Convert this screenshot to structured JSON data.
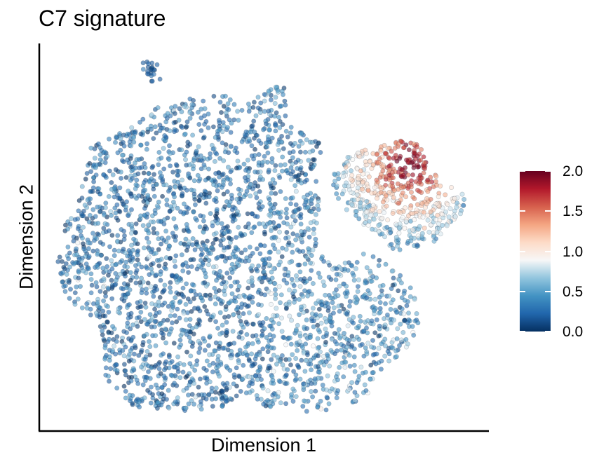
{
  "chart_data": {
    "type": "scatter",
    "title": "C7 signature",
    "xlabel": "Dimension 1",
    "ylabel": "Dimension 2",
    "x_ticks_shown": false,
    "y_ticks_shown": false,
    "grid": false,
    "colorbar": {
      "label": "",
      "range": [
        0.0,
        2.0
      ],
      "ticks": [
        "0.0",
        "0.5",
        "1.0",
        "1.5",
        "2.0"
      ],
      "colormap": [
        "#053061",
        "#2166ac",
        "#4393c3",
        "#92c5de",
        "#f7f7f7",
        "#fddbc7",
        "#f4a582",
        "#d6604d",
        "#b2182b",
        "#67001f"
      ],
      "placement": "right"
    },
    "marker_opacity": 0.6,
    "approx_clusters": [
      {
        "region": "main body (left/center)",
        "value_mean": 0.3
      },
      {
        "region": "lower-right lobe",
        "value_mean": 0.55
      },
      {
        "region": "upper-right protrusion",
        "value_mean": 1.7
      }
    ]
  }
}
